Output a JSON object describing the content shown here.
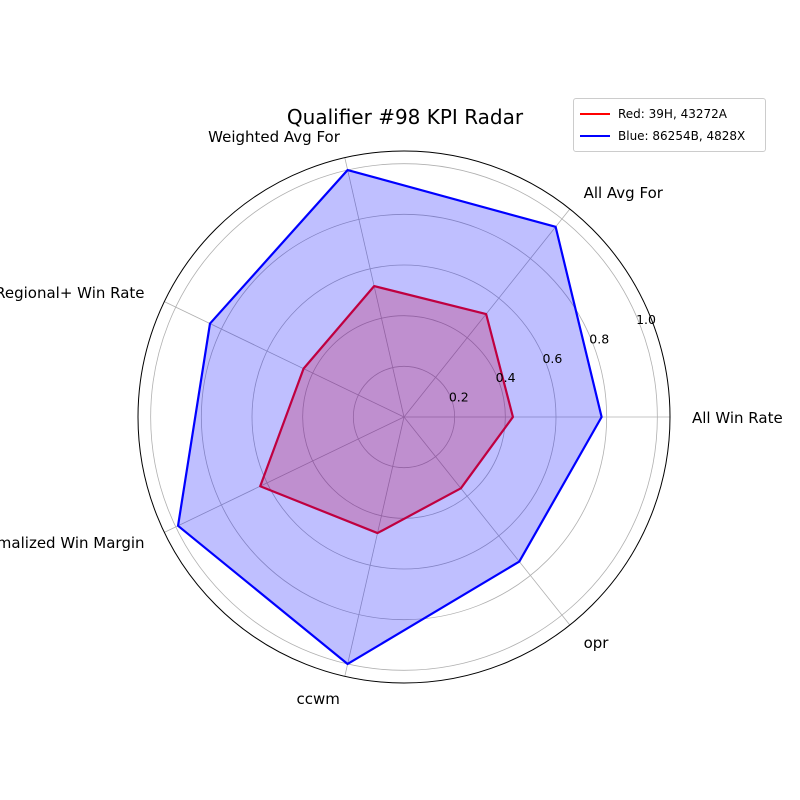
{
  "chart_data": {
    "type": "radar",
    "title": "Qualifier #98 KPI Radar",
    "axes": [
      "All Win Rate",
      "All Avg For",
      "Weighted Avg For",
      "Regional+ Win Rate",
      "Weighted Normalized Win Margin",
      "ccwm",
      "opr"
    ],
    "radial_ticks": [
      "0.2",
      "0.4",
      "0.6",
      "0.8",
      "1.0"
    ],
    "radial_tick_values": [
      0.2,
      0.4,
      0.6,
      0.8,
      1.0
    ],
    "rlim": [
      0,
      1.05
    ],
    "grid": true,
    "legend_position": "top-right",
    "series": [
      {
        "name": "Red: 39H, 43272A",
        "color": "#ff0000",
        "fill": "#ff0000",
        "values": [
          0.43,
          0.52,
          0.53,
          0.44,
          0.63,
          0.47,
          0.36
        ]
      },
      {
        "name": "Blue: 86254B, 4828X",
        "color": "#0000ff",
        "fill": "#0000ff",
        "values": [
          0.78,
          0.96,
          1.0,
          0.85,
          0.99,
          1.0,
          0.73
        ]
      }
    ]
  }
}
